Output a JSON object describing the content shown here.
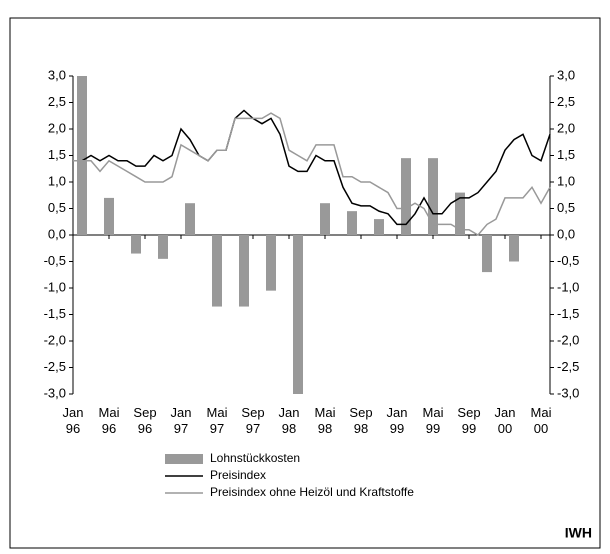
{
  "chart_data": {
    "type": "combo",
    "categories": [
      "Jan 96",
      null,
      null,
      null,
      "Mai 96",
      null,
      null,
      null,
      "Sep 96",
      null,
      null,
      null,
      "Jan 97",
      null,
      null,
      null,
      "Mai 97",
      null,
      null,
      null,
      "Sep 97",
      null,
      null,
      null,
      "Jan 98",
      null,
      null,
      null,
      "Mai 98",
      null,
      null,
      null,
      "Sep 98",
      null,
      null,
      null,
      "Jan 99",
      null,
      null,
      null,
      "Mai 99",
      null,
      null,
      null,
      "Sep 99",
      null,
      null,
      null,
      "Jan 00",
      null,
      null,
      null,
      "Mai 00",
      null
    ],
    "series": [
      {
        "name": "Lohnstückkosten",
        "type": "bar",
        "color": "#999999",
        "values": [
          null,
          3.0,
          null,
          null,
          0.7,
          null,
          null,
          -0.35,
          null,
          null,
          -0.45,
          null,
          null,
          0.6,
          null,
          null,
          -1.35,
          null,
          null,
          -1.35,
          null,
          null,
          -1.05,
          null,
          null,
          -3.0,
          null,
          null,
          0.6,
          null,
          null,
          0.45,
          null,
          null,
          0.3,
          null,
          null,
          1.45,
          null,
          null,
          1.45,
          null,
          null,
          0.8,
          null,
          null,
          -0.7,
          null,
          null,
          -0.5,
          null,
          null,
          null,
          null
        ]
      },
      {
        "name": "Preisindex",
        "type": "line",
        "color": "#000000",
        "values": [
          1.4,
          1.4,
          1.5,
          1.4,
          1.5,
          1.4,
          1.4,
          1.3,
          1.3,
          1.5,
          1.4,
          1.5,
          2.0,
          1.8,
          1.5,
          1.4,
          1.6,
          1.6,
          2.2,
          2.35,
          2.2,
          2.1,
          2.2,
          1.9,
          1.3,
          1.2,
          1.2,
          1.5,
          1.4,
          1.4,
          0.9,
          0.6,
          0.55,
          0.55,
          0.45,
          0.4,
          0.2,
          0.2,
          0.4,
          0.7,
          0.4,
          0.4,
          0.6,
          0.7,
          0.7,
          0.8,
          1.0,
          1.2,
          1.6,
          1.8,
          1.9,
          1.5,
          1.4,
          1.9
        ]
      },
      {
        "name": "Preisindex ohne Heizöl und Kraftstoffe",
        "type": "line",
        "color": "#999999",
        "values": [
          1.4,
          1.4,
          1.4,
          1.2,
          1.4,
          1.3,
          1.2,
          1.1,
          1.0,
          1.0,
          1.0,
          1.1,
          1.7,
          1.6,
          1.5,
          1.4,
          1.6,
          1.6,
          2.2,
          2.2,
          2.2,
          2.2,
          2.3,
          2.2,
          1.6,
          1.5,
          1.4,
          1.7,
          1.7,
          1.7,
          1.1,
          1.1,
          1.0,
          1.0,
          0.9,
          0.8,
          0.5,
          0.5,
          0.6,
          0.5,
          0.2,
          0.2,
          0.2,
          0.1,
          0.1,
          0.0,
          0.2,
          0.3,
          0.7,
          0.7,
          0.7,
          0.9,
          0.6,
          0.9
        ]
      }
    ],
    "ylim": [
      -3,
      3
    ],
    "yticks": [
      {
        "value": 3,
        "label": "3,0"
      },
      {
        "value": 2.5,
        "label": "2,5"
      },
      {
        "value": 2,
        "label": "2,0"
      },
      {
        "value": 1.5,
        "label": "1,5"
      },
      {
        "value": 1,
        "label": "1,0"
      },
      {
        "value": 0.5,
        "label": "0,5"
      },
      {
        "value": 0,
        "label": "0,0"
      },
      {
        "value": -0.5,
        "label": "-0,5"
      },
      {
        "value": -1,
        "label": "-1,0"
      },
      {
        "value": -1.5,
        "label": "-1,5"
      },
      {
        "value": -2,
        "label": "-2,0"
      },
      {
        "value": -2.5,
        "label": "-2,5"
      },
      {
        "value": -3,
        "label": "-3,0"
      }
    ],
    "y2lim": [
      -3,
      3
    ],
    "y2ticks": [
      {
        "value": 3,
        "label": "3,0"
      },
      {
        "value": 2.5,
        "label": "2,5"
      },
      {
        "value": 2,
        "label": "2,0"
      },
      {
        "value": 1.5,
        "label": "1,5"
      },
      {
        "value": 1,
        "label": "1,0"
      },
      {
        "value": 0.5,
        "label": "0,5"
      },
      {
        "value": 0,
        "label": "0,0"
      },
      {
        "value": -0.5,
        "label": "-0,5"
      },
      {
        "value": -1,
        "label": "-1,0"
      },
      {
        "value": -1.5,
        "label": "-1,5"
      },
      {
        "value": -2,
        "label": "-2,0"
      },
      {
        "value": -2.5,
        "label": "-2,5"
      },
      {
        "value": -3,
        "label": "-3,0"
      }
    ],
    "grid": false,
    "annotation": "IWH"
  }
}
